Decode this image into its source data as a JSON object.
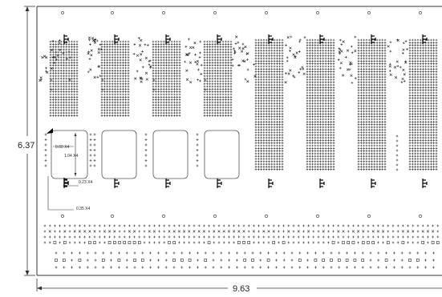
{
  "dimensions": {
    "overall_height": "6.37",
    "overall_width": "9.63"
  },
  "callouts": {
    "cutout_width": "0.60 X4",
    "cutout_height": "1.04 X4",
    "pad_spacing": "0.23 X4",
    "edge_offset": "0.35 X4"
  },
  "colors": {
    "line": "#333333",
    "text": "#222222",
    "marker": "#000000"
  },
  "symbols": {
    "dense_pin": "plus",
    "scatter_pin": "x",
    "connector": "tab-connector-icon",
    "mount_hole": "circle"
  }
}
